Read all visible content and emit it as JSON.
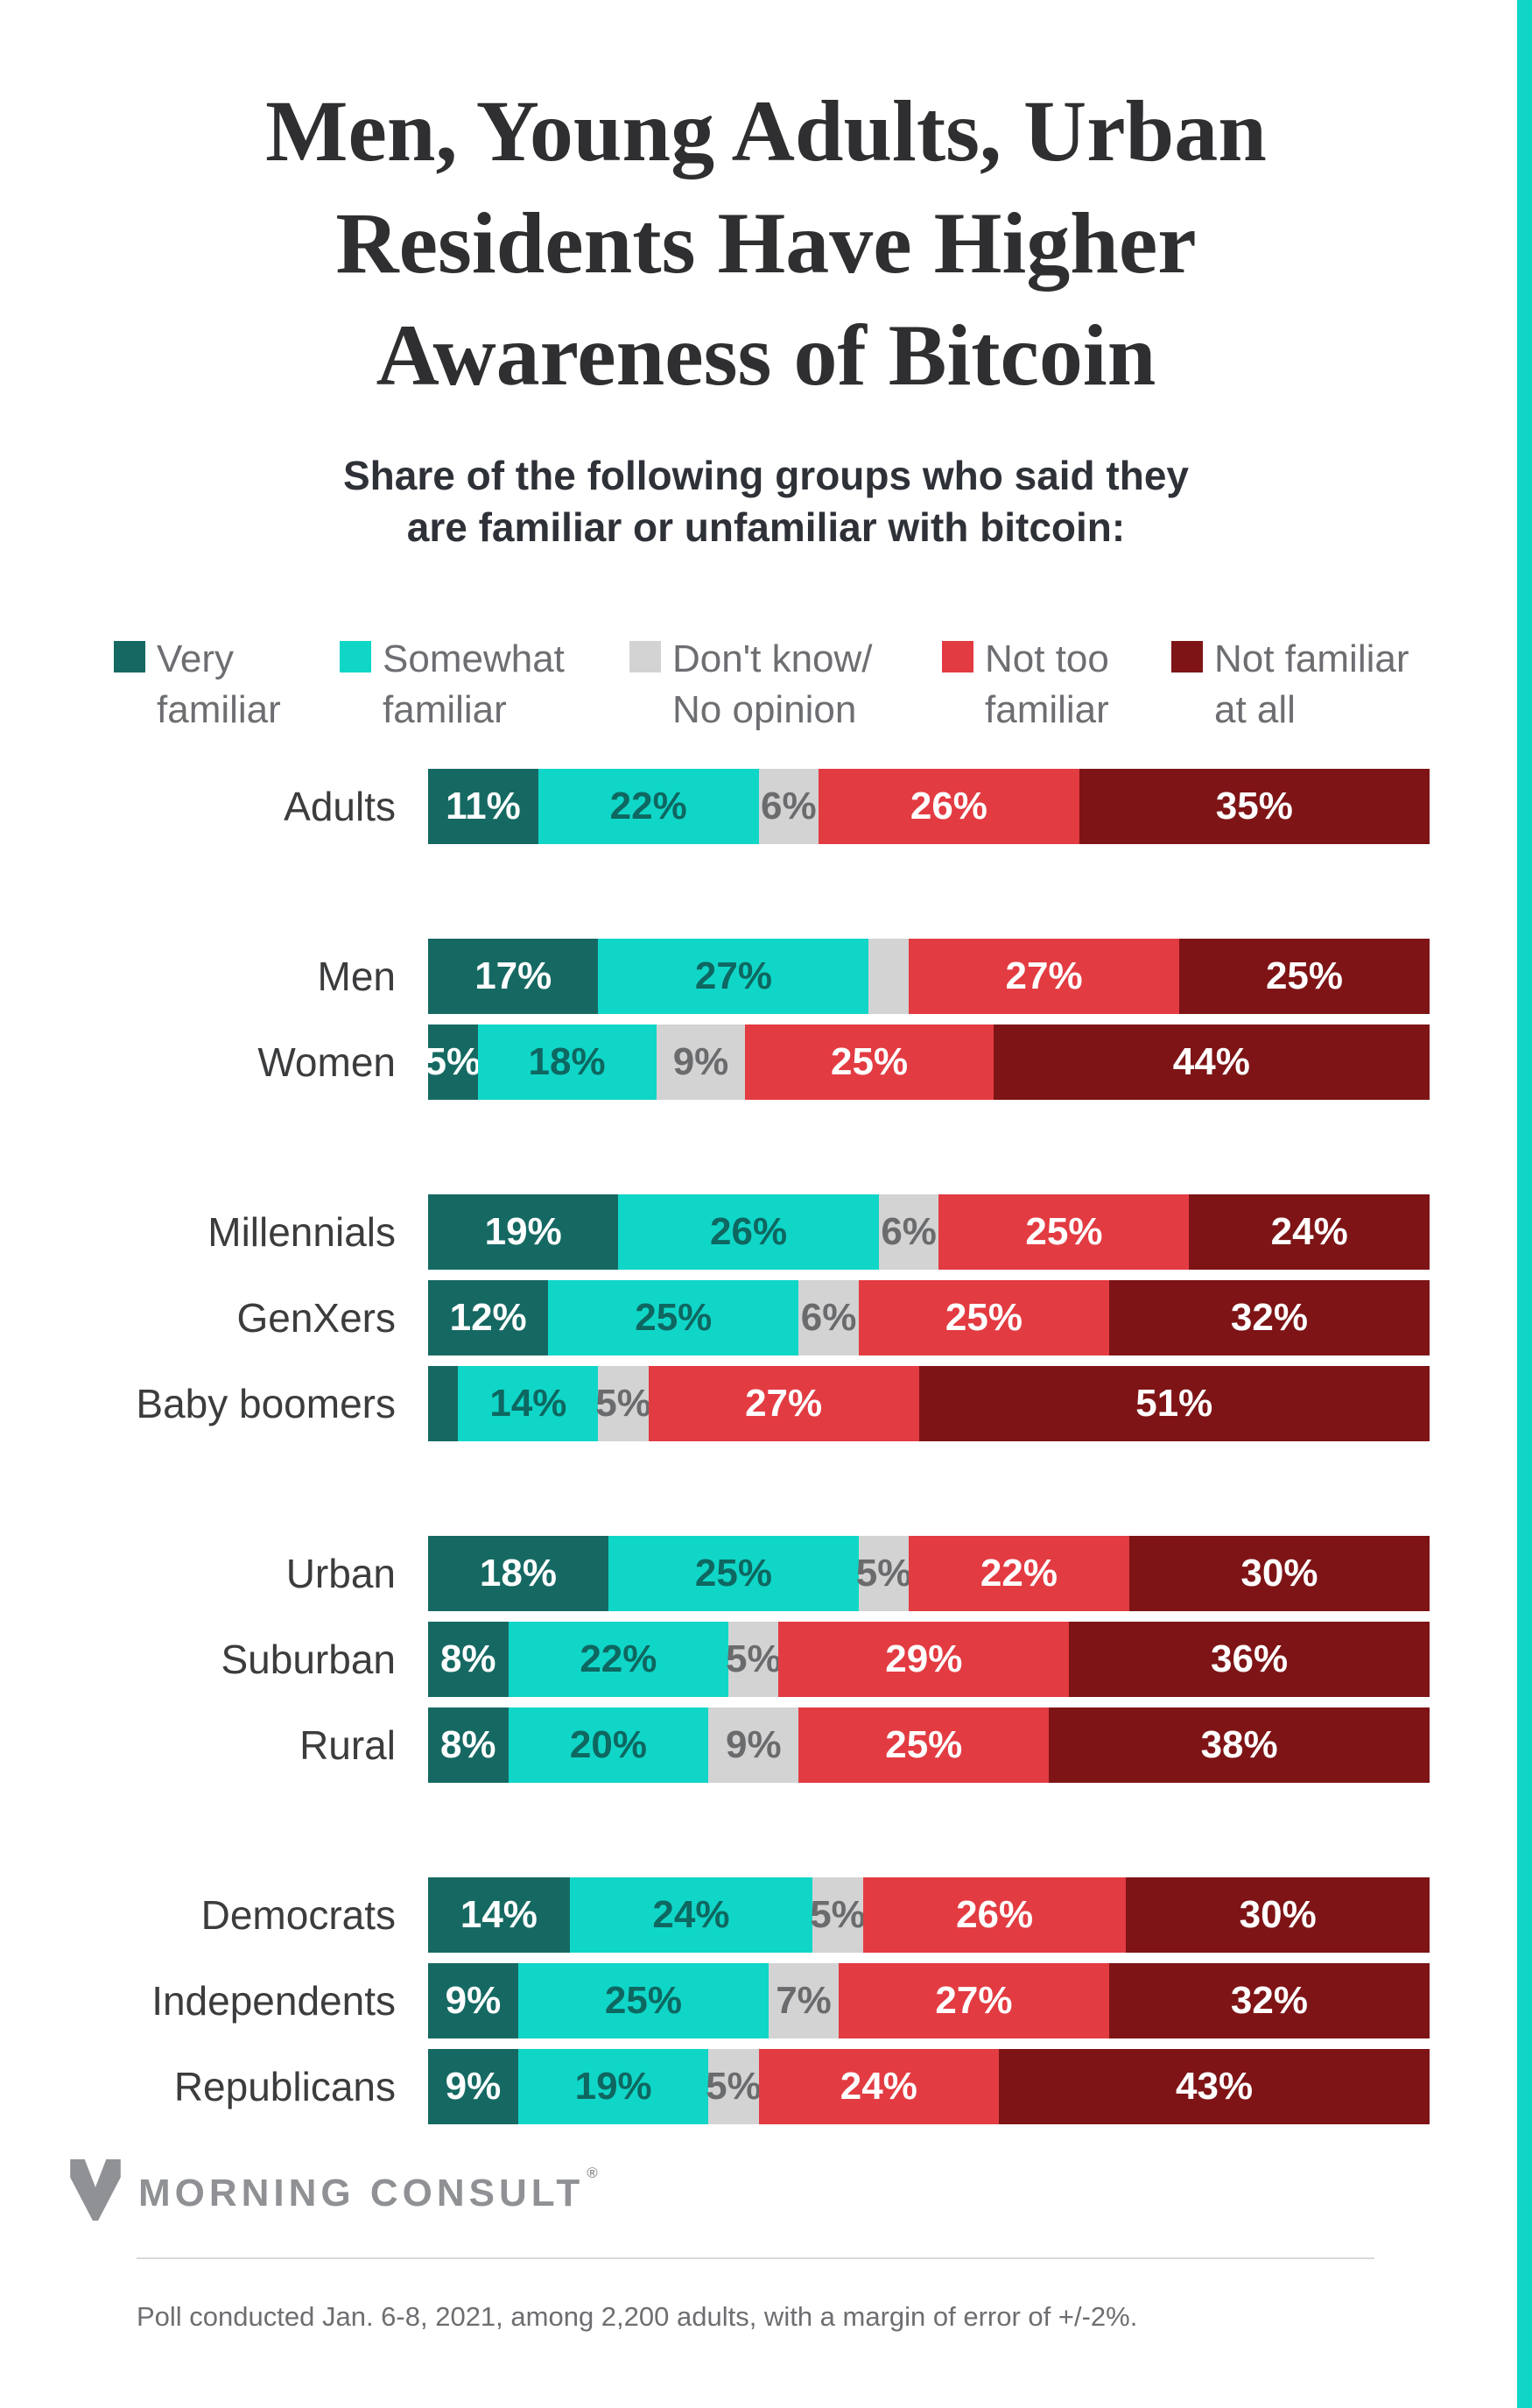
{
  "page": {
    "background": "#FFFFFF",
    "accent_border_color": "#10D6C8"
  },
  "title": {
    "text": "Men, Young Adults, Urban\nResidents Have Higher\nAwareness of Bitcoin"
  },
  "subtitle": {
    "text": "Share of the following groups who said they\nare familiar or unfamiliar with bitcoin:"
  },
  "legend": {
    "items": [
      {
        "label": "Very\nfamiliar",
        "color": "#166963"
      },
      {
        "label": "Somewhat\nfamiliar",
        "color": "#10D6C8"
      },
      {
        "label": "Don't know/\nNo opinion",
        "color": "#D3D3D4"
      },
      {
        "label": "Not too\nfamiliar",
        "color": "#E33B42"
      },
      {
        "label": "Not familiar\nat all",
        "color": "#7E1416"
      }
    ]
  },
  "chart_data": {
    "type": "bar",
    "stacked": true,
    "orientation": "horizontal",
    "value_suffix": "%",
    "axis": "hidden (0-100%, labels printed on segments)",
    "categories": [
      "Adults",
      "Men",
      "Women",
      "Millennials",
      "GenXers",
      "Baby boomers",
      "Urban",
      "Suburban",
      "Rural",
      "Democrats",
      "Independents",
      "Republicans"
    ],
    "groups": [
      [
        0
      ],
      [
        1,
        2
      ],
      [
        3,
        4,
        5
      ],
      [
        6,
        7,
        8
      ],
      [
        9,
        10,
        11
      ]
    ],
    "series": [
      {
        "name": "Very familiar",
        "color": "#166963",
        "label_color": "#FFFFFF",
        "values": [
          11,
          17,
          5,
          19,
          12,
          3,
          18,
          8,
          8,
          14,
          9,
          9
        ]
      },
      {
        "name": "Somewhat familiar",
        "color": "#10D6C8",
        "label_color": "#0E6760",
        "values": [
          22,
          27,
          18,
          26,
          25,
          14,
          25,
          22,
          20,
          24,
          25,
          19
        ]
      },
      {
        "name": "Don't know/No opinion",
        "color": "#D3D3D4",
        "label_color": "#6A6B6D",
        "values": [
          6,
          4,
          9,
          6,
          6,
          5,
          5,
          5,
          9,
          5,
          7,
          5
        ]
      },
      {
        "name": "Not too familiar",
        "color": "#E33B42",
        "label_color": "#FFFFFF",
        "values": [
          26,
          27,
          25,
          25,
          25,
          27,
          22,
          29,
          25,
          26,
          27,
          24
        ]
      },
      {
        "name": "Not familiar at all",
        "color": "#7E1416",
        "label_color": "#FFFFFF",
        "values": [
          35,
          25,
          44,
          24,
          32,
          51,
          30,
          36,
          38,
          30,
          32,
          43
        ]
      }
    ],
    "value_labels": [
      [
        "11%",
        "22%",
        "6%",
        "26%",
        "35%"
      ],
      [
        "17%",
        "27%",
        null,
        "27%",
        "25%"
      ],
      [
        "5%",
        "18%",
        "9%",
        "25%",
        "44%"
      ],
      [
        "19%",
        "26%",
        "6%",
        "25%",
        "24%"
      ],
      [
        "12%",
        "25%",
        "6%",
        "25%",
        "32%"
      ],
      [
        null,
        "14%",
        "5%",
        "27%",
        "51%"
      ],
      [
        "18%",
        "25%",
        "5%",
        "22%",
        "30%"
      ],
      [
        "8%",
        "22%",
        "5%",
        "29%",
        "36%"
      ],
      [
        "8%",
        "20%",
        "9%",
        "25%",
        "38%"
      ],
      [
        "14%",
        "24%",
        "5%",
        "26%",
        "30%"
      ],
      [
        "9%",
        "25%",
        "7%",
        "27%",
        "32%"
      ],
      [
        "9%",
        "19%",
        "5%",
        "24%",
        "43%"
      ]
    ]
  },
  "footer": {
    "brand": "MORNING CONSULT",
    "registered": "®",
    "note": "Poll conducted Jan. 6-8, 2021, among 2,200 adults, with a margin of error of +/-2%."
  }
}
